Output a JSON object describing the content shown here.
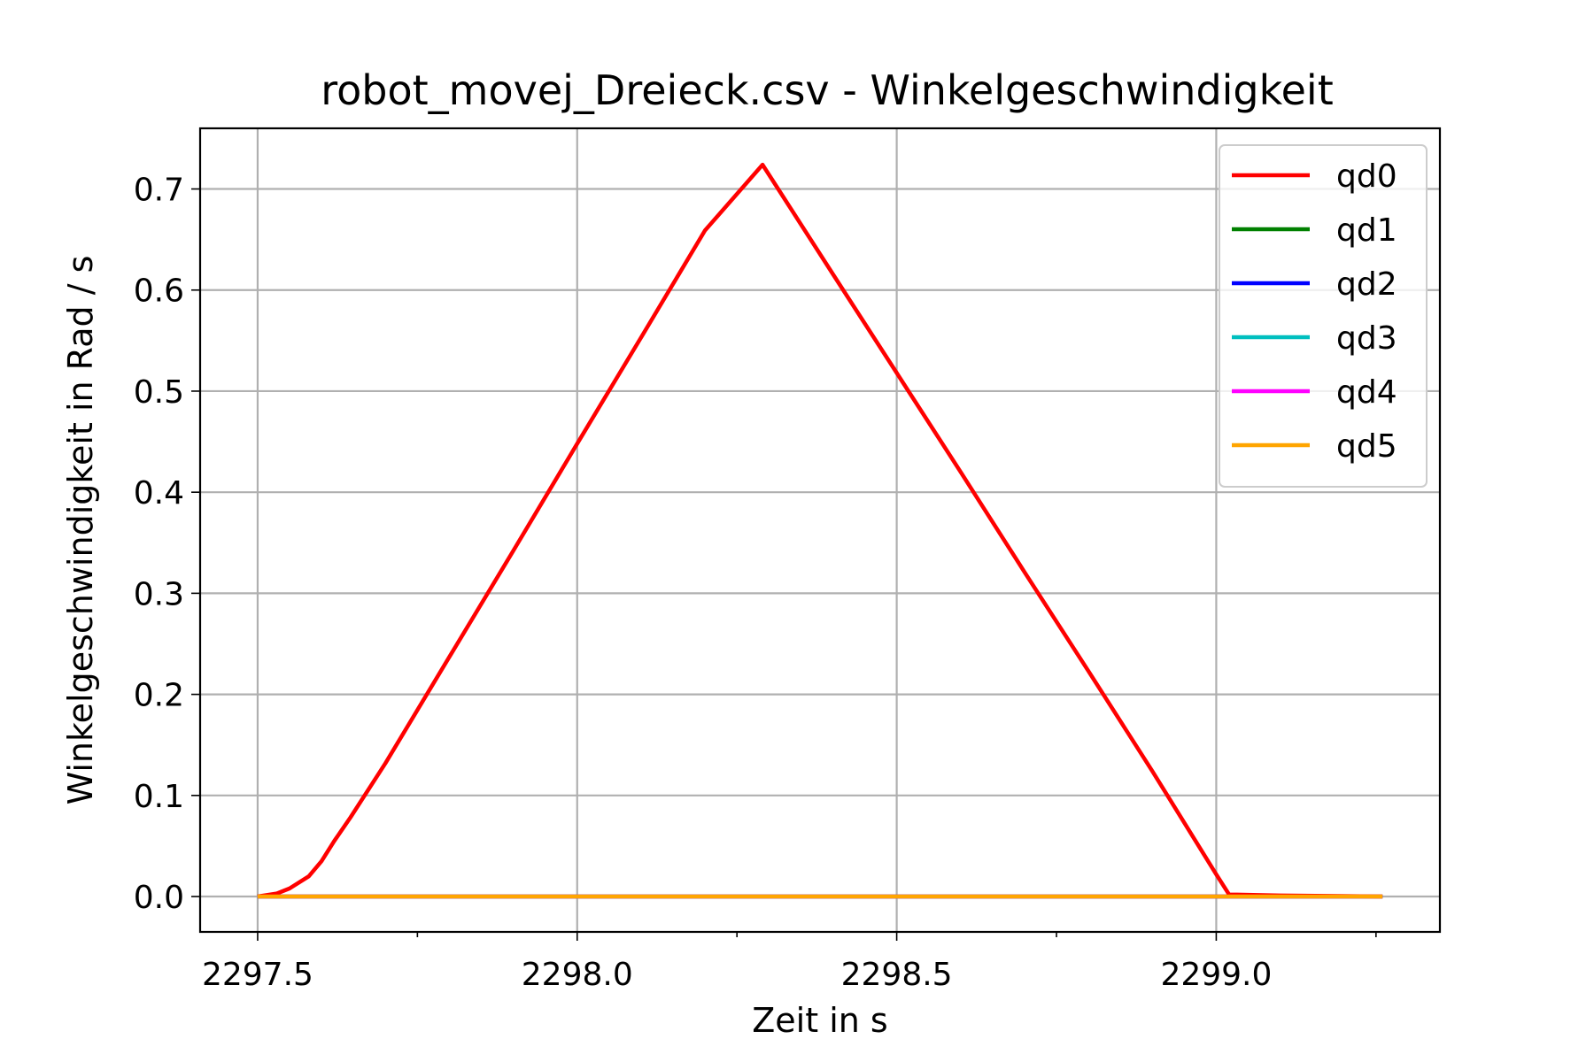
{
  "chart_data": {
    "type": "line",
    "title": "robot_movej_Dreieck.csv - Winkelgeschwindigkeit",
    "xlabel": "Zeit in s",
    "ylabel": "Winkelgeschwindigkeit in Rad / s",
    "xlim": [
      2297.41,
      2299.35
    ],
    "ylim": [
      -0.035,
      0.76
    ],
    "xticks": [
      2297.5,
      2298.0,
      2298.5,
      2299.0
    ],
    "xtick_labels": [
      "2297.5",
      "2298.0",
      "2298.5",
      "2299.0"
    ],
    "x_minor_ticks": [
      2297.75,
      2298.25,
      2298.75,
      2299.25
    ],
    "yticks": [
      0.0,
      0.1,
      0.2,
      0.3,
      0.4,
      0.5,
      0.6,
      0.7
    ],
    "ytick_labels": [
      "0.0",
      "0.1",
      "0.2",
      "0.3",
      "0.4",
      "0.5",
      "0.6",
      "0.7"
    ],
    "grid": true,
    "legend_position": "top-right",
    "series": [
      {
        "name": "qd0",
        "color": "#ff0000",
        "x": [
          2297.5,
          2297.53,
          2297.55,
          2297.58,
          2297.6,
          2297.62,
          2297.645,
          2297.7,
          2297.8,
          2297.9,
          2298.0,
          2298.1,
          2298.2,
          2298.29,
          2298.4,
          2298.5,
          2298.6,
          2298.7,
          2298.8,
          2298.9,
          2299.0,
          2299.02,
          2299.1,
          2299.26
        ],
        "y": [
          0.0,
          0.003,
          0.008,
          0.02,
          0.035,
          0.055,
          0.078,
          0.132,
          0.237,
          0.342,
          0.448,
          0.553,
          0.659,
          0.724,
          0.616,
          0.518,
          0.42,
          0.321,
          0.223,
          0.124,
          0.022,
          0.002,
          0.001,
          0.0
        ]
      },
      {
        "name": "qd1",
        "color": "#008000",
        "x": [
          2297.5,
          2299.26
        ],
        "y": [
          0.0,
          0.0
        ]
      },
      {
        "name": "qd2",
        "color": "#0000ff",
        "x": [
          2297.5,
          2299.26
        ],
        "y": [
          0.0,
          0.0
        ]
      },
      {
        "name": "qd3",
        "color": "#00bfbf",
        "x": [
          2297.5,
          2299.26
        ],
        "y": [
          0.0,
          0.0
        ]
      },
      {
        "name": "qd4",
        "color": "#ff00ff",
        "x": [
          2297.5,
          2299.26
        ],
        "y": [
          0.0,
          0.0
        ]
      },
      {
        "name": "qd5",
        "color": "#ffa500",
        "x": [
          2297.5,
          2299.26
        ],
        "y": [
          0.0,
          0.0
        ]
      }
    ]
  }
}
